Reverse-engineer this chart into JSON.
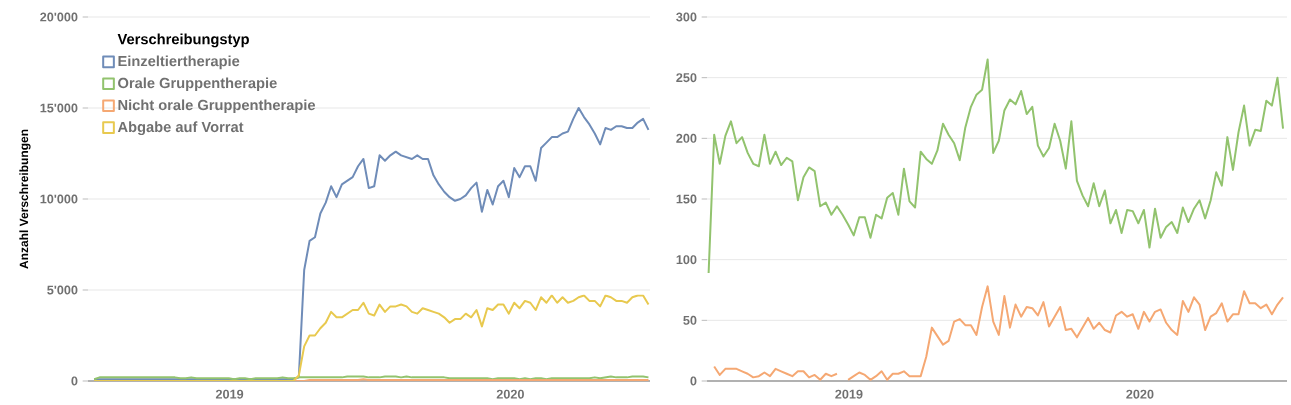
{
  "chart_data": [
    {
      "type": "line",
      "ylabel": "Anzahl Verschreibungen",
      "legend_title": "Verschreibungstyp",
      "legend": "top left",
      "grid": "y",
      "line_style": "solid",
      "xlim": [
        "2018-07-01",
        "2020-07-01"
      ],
      "ylim": [
        0,
        20000
      ],
      "xticks": [
        {
          "value": "2019-01-01",
          "label": "2019"
        },
        {
          "value": "2020-01-01",
          "label": "2020"
        }
      ],
      "yticks": [
        0,
        {
          "value": 5000,
          "label": "5'000"
        },
        {
          "value": 10000,
          "label": "10'000"
        },
        {
          "value": 15000,
          "label": "15'000"
        },
        {
          "value": 20000,
          "label": "20'000"
        }
      ],
      "x": [
        "2018-07-09",
        "2018-07-16",
        "2018-07-23",
        "2018-07-30",
        "2018-08-06",
        "2018-08-13",
        "2018-08-20",
        "2018-08-27",
        "2018-09-03",
        "2018-09-10",
        "2018-09-17",
        "2018-09-24",
        "2018-10-01",
        "2018-10-08",
        "2018-10-15",
        "2018-10-22",
        "2018-10-29",
        "2018-11-05",
        "2018-11-12",
        "2018-11-19",
        "2018-11-26",
        "2018-12-03",
        "2018-12-10",
        "2018-12-17",
        "2018-12-24",
        "2018-12-31",
        "2019-01-07",
        "2019-01-14",
        "2019-01-21",
        "2019-01-28",
        "2019-02-04",
        "2019-02-11",
        "2019-02-18",
        "2019-02-25",
        "2019-03-04",
        "2019-03-11",
        "2019-03-18",
        "2019-03-25",
        "2019-04-01",
        "2019-04-08",
        "2019-04-15",
        "2019-04-22",
        "2019-04-29",
        "2019-05-06",
        "2019-05-13",
        "2019-05-20",
        "2019-05-27",
        "2019-06-03",
        "2019-06-10",
        "2019-06-17",
        "2019-06-24",
        "2019-07-01",
        "2019-07-08",
        "2019-07-15",
        "2019-07-22",
        "2019-07-29",
        "2019-08-05",
        "2019-08-12",
        "2019-08-19",
        "2019-08-26",
        "2019-09-02",
        "2019-09-09",
        "2019-09-16",
        "2019-09-23",
        "2019-09-30",
        "2019-10-07",
        "2019-10-14",
        "2019-10-21",
        "2019-10-28",
        "2019-11-04",
        "2019-11-11",
        "2019-11-18",
        "2019-11-25",
        "2019-12-02",
        "2019-12-09",
        "2019-12-16",
        "2019-12-23",
        "2019-12-30",
        "2020-01-06",
        "2020-01-13",
        "2020-01-20",
        "2020-01-27",
        "2020-02-03",
        "2020-02-10",
        "2020-02-17",
        "2020-02-24",
        "2020-03-02",
        "2020-03-09",
        "2020-03-16",
        "2020-03-23",
        "2020-03-30",
        "2020-04-06",
        "2020-04-13",
        "2020-04-20",
        "2020-04-27",
        "2020-05-04",
        "2020-05-11",
        "2020-05-18",
        "2020-05-25",
        "2020-06-01",
        "2020-06-08",
        "2020-06-15",
        "2020-06-22",
        "2020-06-29"
      ],
      "series": [
        {
          "name": "Einzeltiertherapie",
          "color": "#6f8cb8",
          "values": [
            100,
            100,
            100,
            100,
            100,
            100,
            100,
            100,
            100,
            100,
            100,
            100,
            100,
            100,
            100,
            100,
            100,
            100,
            100,
            100,
            100,
            100,
            100,
            100,
            100,
            100,
            100,
            100,
            100,
            100,
            100,
            100,
            100,
            100,
            100,
            100,
            100,
            100,
            200,
            6100,
            7700,
            7900,
            9200,
            9800,
            10700,
            10100,
            10800,
            11000,
            11200,
            11800,
            12200,
            10600,
            10700,
            12400,
            12100,
            12400,
            12600,
            12400,
            12300,
            12200,
            12400,
            12200,
            12200,
            11300,
            10800,
            10400,
            10100,
            9900,
            10000,
            10200,
            10600,
            10900,
            9300,
            10500,
            9700,
            10700,
            11000,
            10100,
            11700,
            11200,
            11800,
            11800,
            11000,
            12800,
            13100,
            13400,
            13400,
            13600,
            13700,
            14400,
            15000,
            14500,
            14100,
            13600,
            13000,
            13900,
            13800,
            14000,
            14000,
            13900,
            13900,
            14200,
            14400,
            13800
          ]
        },
        {
          "name": "Orale Gruppentherapie",
          "color": "#92c36e",
          "values": [
            100,
            200,
            200,
            200,
            200,
            200,
            200,
            200,
            200,
            200,
            200,
            200,
            200,
            200,
            200,
            200,
            150,
            150,
            200,
            150,
            150,
            150,
            150,
            150,
            150,
            150,
            100,
            150,
            150,
            100,
            150,
            150,
            150,
            150,
            150,
            200,
            150,
            150,
            200,
            200,
            200,
            200,
            200,
            200,
            200,
            200,
            200,
            250,
            250,
            250,
            250,
            200,
            200,
            200,
            250,
            250,
            250,
            200,
            250,
            200,
            200,
            200,
            200,
            200,
            200,
            200,
            150,
            150,
            150,
            150,
            150,
            150,
            150,
            150,
            100,
            150,
            150,
            150,
            150,
            100,
            150,
            100,
            150,
            150,
            100,
            150,
            150,
            150,
            150,
            150,
            150,
            150,
            150,
            200,
            150,
            200,
            250,
            200,
            200,
            200,
            250,
            250,
            250,
            200
          ]
        },
        {
          "name": "Nicht orale Gruppentherapie",
          "color": "#f5a873",
          "values": [
            null,
            0,
            0,
            0,
            0,
            0,
            0,
            0,
            0,
            0,
            0,
            0,
            0,
            0,
            0,
            0,
            0,
            0,
            0,
            0,
            0,
            0,
            0,
            0,
            null,
            0,
            0,
            0,
            0,
            0,
            0,
            0,
            0,
            0,
            0,
            0,
            0,
            0,
            0,
            0,
            50,
            50,
            50,
            50,
            50,
            50,
            50,
            50,
            50,
            50,
            100,
            50,
            50,
            50,
            50,
            50,
            50,
            50,
            50,
            50,
            50,
            50,
            50,
            50,
            50,
            50,
            50,
            50,
            50,
            50,
            50,
            50,
            50,
            50,
            50,
            50,
            50,
            50,
            50,
            50,
            50,
            50,
            50,
            50,
            50,
            50,
            50,
            50,
            50,
            50,
            50,
            50,
            50,
            50,
            50,
            50,
            50,
            50,
            50,
            50,
            50,
            50,
            50,
            50
          ]
        },
        {
          "name": "Abgabe auf Vorrat",
          "color": "#e8c94f",
          "values": [
            0,
            0,
            0,
            0,
            0,
            0,
            0,
            0,
            0,
            0,
            0,
            0,
            0,
            0,
            0,
            0,
            0,
            0,
            0,
            0,
            0,
            0,
            0,
            0,
            0,
            0,
            0,
            0,
            0,
            0,
            0,
            0,
            0,
            0,
            0,
            0,
            0,
            0,
            300,
            1900,
            2500,
            2500,
            2900,
            3200,
            3800,
            3500,
            3500,
            3700,
            3900,
            3900,
            4300,
            3700,
            3600,
            4200,
            3800,
            4100,
            4100,
            4200,
            4100,
            3800,
            3700,
            4000,
            3900,
            3800,
            3700,
            3500,
            3200,
            3400,
            3400,
            3700,
            3500,
            3900,
            3000,
            4000,
            3900,
            4200,
            4200,
            3700,
            4300,
            4000,
            4400,
            4300,
            3900,
            4600,
            4300,
            4700,
            4300,
            4600,
            4300,
            4400,
            4600,
            4700,
            4400,
            4400,
            4100,
            4700,
            4600,
            4400,
            4400,
            4300,
            4600,
            4700,
            4700,
            4200
          ]
        }
      ]
    },
    {
      "type": "line",
      "grid": "y",
      "line_style": "solid",
      "xlim": [
        "2018-07-07",
        "2020-07-04"
      ],
      "ylim": [
        0,
        300
      ],
      "xticks": [
        {
          "value": "2019-01-01",
          "label": "2019"
        },
        {
          "value": "2020-01-01",
          "label": "2020"
        }
      ],
      "yticks": [
        0,
        50,
        100,
        150,
        200,
        250,
        300
      ],
      "x": [
        "2018-07-09",
        "2018-07-16",
        "2018-07-23",
        "2018-07-30",
        "2018-08-06",
        "2018-08-13",
        "2018-08-20",
        "2018-08-27",
        "2018-09-03",
        "2018-09-10",
        "2018-09-17",
        "2018-09-24",
        "2018-10-01",
        "2018-10-08",
        "2018-10-15",
        "2018-10-22",
        "2018-10-29",
        "2018-11-05",
        "2018-11-12",
        "2018-11-19",
        "2018-11-26",
        "2018-12-03",
        "2018-12-10",
        "2018-12-17",
        "2018-12-24",
        "2018-12-31",
        "2019-01-07",
        "2019-01-14",
        "2019-01-21",
        "2019-01-28",
        "2019-02-04",
        "2019-02-11",
        "2019-02-18",
        "2019-02-25",
        "2019-03-04",
        "2019-03-11",
        "2019-03-18",
        "2019-03-25",
        "2019-04-01",
        "2019-04-08",
        "2019-04-15",
        "2019-04-22",
        "2019-04-29",
        "2019-05-06",
        "2019-05-13",
        "2019-05-20",
        "2019-05-27",
        "2019-06-03",
        "2019-06-10",
        "2019-06-17",
        "2019-06-24",
        "2019-07-01",
        "2019-07-08",
        "2019-07-15",
        "2019-07-22",
        "2019-07-29",
        "2019-08-05",
        "2019-08-12",
        "2019-08-19",
        "2019-08-26",
        "2019-09-02",
        "2019-09-09",
        "2019-09-16",
        "2019-09-23",
        "2019-09-30",
        "2019-10-07",
        "2019-10-14",
        "2019-10-21",
        "2019-10-28",
        "2019-11-04",
        "2019-11-11",
        "2019-11-18",
        "2019-11-25",
        "2019-12-02",
        "2019-12-09",
        "2019-12-16",
        "2019-12-23",
        "2019-12-30",
        "2020-01-06",
        "2020-01-13",
        "2020-01-20",
        "2020-01-27",
        "2020-02-03",
        "2020-02-10",
        "2020-02-17",
        "2020-02-24",
        "2020-03-02",
        "2020-03-09",
        "2020-03-16",
        "2020-03-23",
        "2020-03-30",
        "2020-04-06",
        "2020-04-13",
        "2020-04-20",
        "2020-04-27",
        "2020-05-04",
        "2020-05-11",
        "2020-05-18",
        "2020-05-25",
        "2020-06-01",
        "2020-06-08",
        "2020-06-15",
        "2020-06-22",
        "2020-06-29"
      ],
      "series": [
        {
          "color": "#92c36e",
          "values": [
            89,
            203,
            179,
            202,
            214,
            196,
            201,
            188,
            179,
            177,
            203,
            179,
            189,
            178,
            184,
            181,
            149,
            168,
            176,
            173,
            144,
            147,
            137,
            144,
            137,
            129,
            120,
            135,
            135,
            118,
            137,
            134,
            151,
            155,
            137,
            175,
            148,
            143,
            189,
            183,
            179,
            190,
            212,
            203,
            196,
            182,
            209,
            226,
            236,
            240,
            265,
            188,
            198,
            223,
            232,
            228,
            239,
            220,
            226,
            194,
            185,
            192,
            212,
            198,
            175,
            214,
            165,
            153,
            144,
            163,
            144,
            157,
            130,
            141,
            122,
            141,
            140,
            130,
            141,
            110,
            142,
            118,
            127,
            131,
            122,
            143,
            131,
            142,
            149,
            134,
            149,
            172,
            161,
            201,
            174,
            205,
            227,
            194,
            207,
            206,
            231,
            227,
            250,
            208
          ]
        },
        {
          "color": "#f5a873",
          "values": [
            null,
            12,
            5,
            10,
            10,
            10,
            8,
            6,
            3,
            4,
            7,
            4,
            10,
            8,
            6,
            4,
            8,
            8,
            3,
            5,
            1,
            6,
            4,
            6,
            null,
            1,
            4,
            7,
            5,
            1,
            4,
            8,
            1,
            6,
            6,
            8,
            4,
            4,
            4,
            20,
            44,
            37,
            30,
            33,
            49,
            51,
            46,
            46,
            38,
            61,
            78,
            49,
            38,
            70,
            44,
            63,
            53,
            61,
            60,
            54,
            65,
            45,
            53,
            61,
            42,
            43,
            36,
            44,
            52,
            43,
            48,
            42,
            40,
            54,
            57,
            53,
            55,
            43,
            57,
            49,
            57,
            59,
            48,
            42,
            38,
            66,
            57,
            69,
            63,
            42,
            53,
            56,
            64,
            49,
            55,
            55,
            74,
            64,
            64,
            60,
            63,
            55,
            63,
            69
          ]
        }
      ]
    }
  ]
}
